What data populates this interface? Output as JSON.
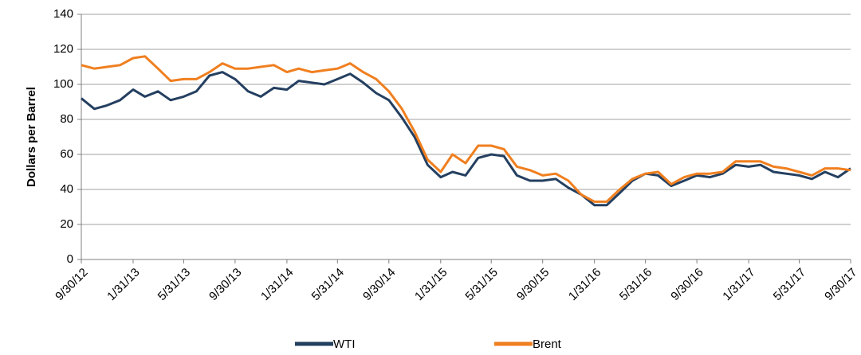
{
  "chart_data": {
    "type": "line",
    "y_label": "Dollars per Barrel",
    "x": [
      "2012-09-30",
      "2012-10-31",
      "2012-11-30",
      "2012-12-31",
      "2013-01-31",
      "2013-02-28",
      "2013-03-31",
      "2013-04-30",
      "2013-05-31",
      "2013-06-30",
      "2013-07-31",
      "2013-08-31",
      "2013-09-30",
      "2013-10-31",
      "2013-11-30",
      "2013-12-31",
      "2014-01-31",
      "2014-02-28",
      "2014-03-31",
      "2014-04-30",
      "2014-05-31",
      "2014-06-30",
      "2014-07-31",
      "2014-08-31",
      "2014-09-30",
      "2014-10-31",
      "2014-11-30",
      "2014-12-31",
      "2015-01-31",
      "2015-02-28",
      "2015-03-31",
      "2015-04-30",
      "2015-05-31",
      "2015-06-30",
      "2015-07-31",
      "2015-08-31",
      "2015-09-30",
      "2015-10-31",
      "2015-11-30",
      "2015-12-31",
      "2016-01-31",
      "2016-02-29",
      "2016-03-31",
      "2016-04-30",
      "2016-05-31",
      "2016-06-30",
      "2016-07-31",
      "2016-08-31",
      "2016-09-30",
      "2016-10-31",
      "2016-11-30",
      "2016-12-31",
      "2017-01-31",
      "2017-02-28",
      "2017-03-31",
      "2017-04-30",
      "2017-05-31",
      "2017-06-30",
      "2017-07-31",
      "2017-08-31",
      "2017-09-30"
    ],
    "series": [
      {
        "name": "WTI",
        "color": "#243f60",
        "values": [
          92,
          86,
          88,
          91,
          97,
          93,
          96,
          91,
          93,
          96,
          105,
          107,
          103,
          96,
          93,
          98,
          97,
          102,
          101,
          100,
          103,
          106,
          101,
          95,
          91,
          81,
          70,
          54,
          47,
          50,
          48,
          58,
          60,
          59,
          48,
          45,
          45,
          46,
          41,
          37,
          31,
          31,
          38,
          45,
          49,
          48,
          42,
          45,
          48,
          47,
          49,
          54,
          53,
          54,
          50,
          49,
          48,
          46,
          50,
          47,
          52
        ]
      },
      {
        "name": "Brent",
        "color": "#f07f1f",
        "values": [
          111,
          109,
          110,
          111,
          115,
          116,
          109,
          102,
          103,
          103,
          107,
          112,
          109,
          109,
          110,
          111,
          107,
          109,
          107,
          108,
          109,
          112,
          107,
          103,
          96,
          86,
          73,
          57,
          50,
          60,
          55,
          65,
          65,
          63,
          53,
          51,
          48,
          49,
          45,
          37,
          33,
          33,
          40,
          46,
          49,
          50,
          43,
          47,
          49,
          49,
          50,
          56,
          56,
          56,
          53,
          52,
          50,
          48,
          52,
          52,
          51
        ]
      }
    ],
    "xlim": [
      "2012-09-30",
      "2017-09-30"
    ],
    "xticks": [
      {
        "value": "2012-09-30",
        "label": "9/30/12"
      },
      {
        "value": "2013-01-31",
        "label": "1/31/13"
      },
      {
        "value": "2013-05-31",
        "label": "5/31/13"
      },
      {
        "value": "2013-09-30",
        "label": "9/30/13"
      },
      {
        "value": "2014-01-31",
        "label": "1/31/14"
      },
      {
        "value": "2014-05-31",
        "label": "5/31/14"
      },
      {
        "value": "2014-09-30",
        "label": "9/30/14"
      },
      {
        "value": "2015-01-31",
        "label": "1/31/15"
      },
      {
        "value": "2015-05-31",
        "label": "5/31/15"
      },
      {
        "value": "2015-09-30",
        "label": "9/30/15"
      },
      {
        "value": "2016-01-31",
        "label": "1/31/16"
      },
      {
        "value": "2016-05-31",
        "label": "5/31/16"
      },
      {
        "value": "2016-09-30",
        "label": "9/30/16"
      },
      {
        "value": "2017-01-31",
        "label": "1/31/17"
      },
      {
        "value": "2017-05-31",
        "label": "5/31/17"
      },
      {
        "value": "2017-09-30",
        "label": "9/30/17"
      }
    ],
    "ylim": [
      0,
      140
    ],
    "yticks": [
      0,
      20,
      40,
      60,
      80,
      100,
      120,
      140
    ],
    "grid": true,
    "legend": "bottom"
  }
}
